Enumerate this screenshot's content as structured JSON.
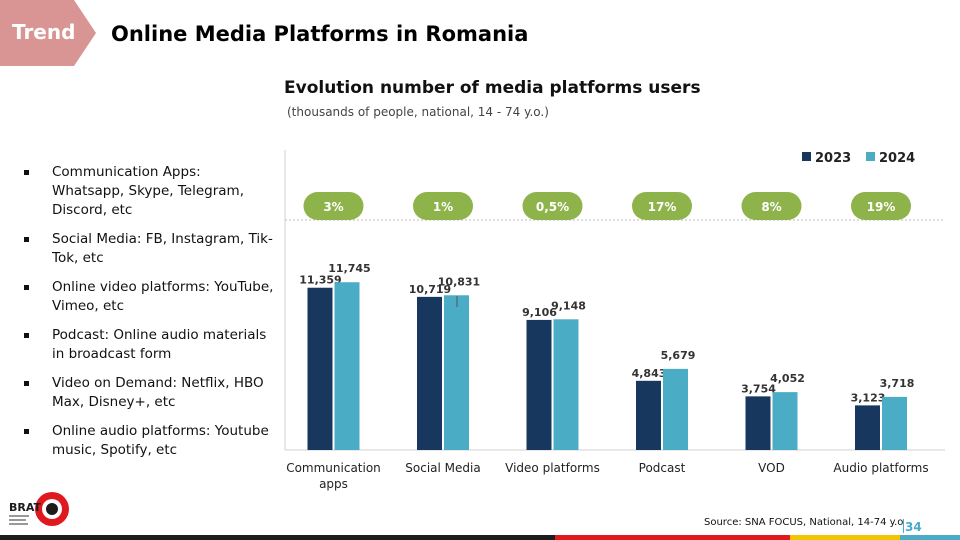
{
  "header": {
    "tag": "Trend",
    "title": "Online Media Platforms in Romania"
  },
  "bullets": [
    "Communication Apps: Whatsapp, Skype, Telegram, Discord, etc",
    "Social Media: FB, Instagram, Tik-Tok, etc",
    "Online video platforms: YouTube, Vimeo, etc",
    "Podcast: Online audio materials in broadcast form",
    "Video on Demand: Netflix, HBO Max, Disney+, etc",
    "Online audio platforms: Youtube music, Spotify, etc"
  ],
  "chart_data": {
    "type": "bar",
    "title": "Evolution number of media platforms users",
    "subtitle": "(thousands of people, national, 14  - 74 y.o.)",
    "categories": [
      [
        "Communication",
        "apps"
      ],
      [
        "Social Media"
      ],
      [
        "Video platforms"
      ],
      [
        "Podcast"
      ],
      [
        "VOD"
      ],
      [
        "Audio platforms"
      ]
    ],
    "series": [
      {
        "name": "2023",
        "values": [
          11359,
          10719,
          9106,
          4843,
          3754,
          3123
        ],
        "labels": [
          "11,359",
          "10,719",
          "9,106",
          "4,843",
          "3,754",
          "3,123"
        ]
      },
      {
        "name": "2024",
        "values": [
          11745,
          10831,
          9148,
          5679,
          4052,
          3718
        ],
        "labels": [
          "11,745",
          "10,831",
          "9,148",
          "5,679",
          "4,052",
          "3,718"
        ]
      }
    ],
    "growth": [
      "3%",
      "1%",
      "0,5%",
      "17%",
      "8%",
      "19%"
    ],
    "ylim": [
      0,
      14000
    ],
    "legend": "top-right",
    "colors": {
      "2023": "#17375e",
      "2024": "#4bacc6",
      "growth": "#8fb34b"
    }
  },
  "footer": {
    "source": "Source: SNA FOCUS, National, 14-74 y.o",
    "page": "34",
    "logo_text": "BRAT"
  },
  "colors": {
    "trend_tag": "#d99594",
    "bar_segments": [
      "#1c1c1c",
      "#e0191f",
      "#f2c500",
      "#4bacc6"
    ]
  }
}
